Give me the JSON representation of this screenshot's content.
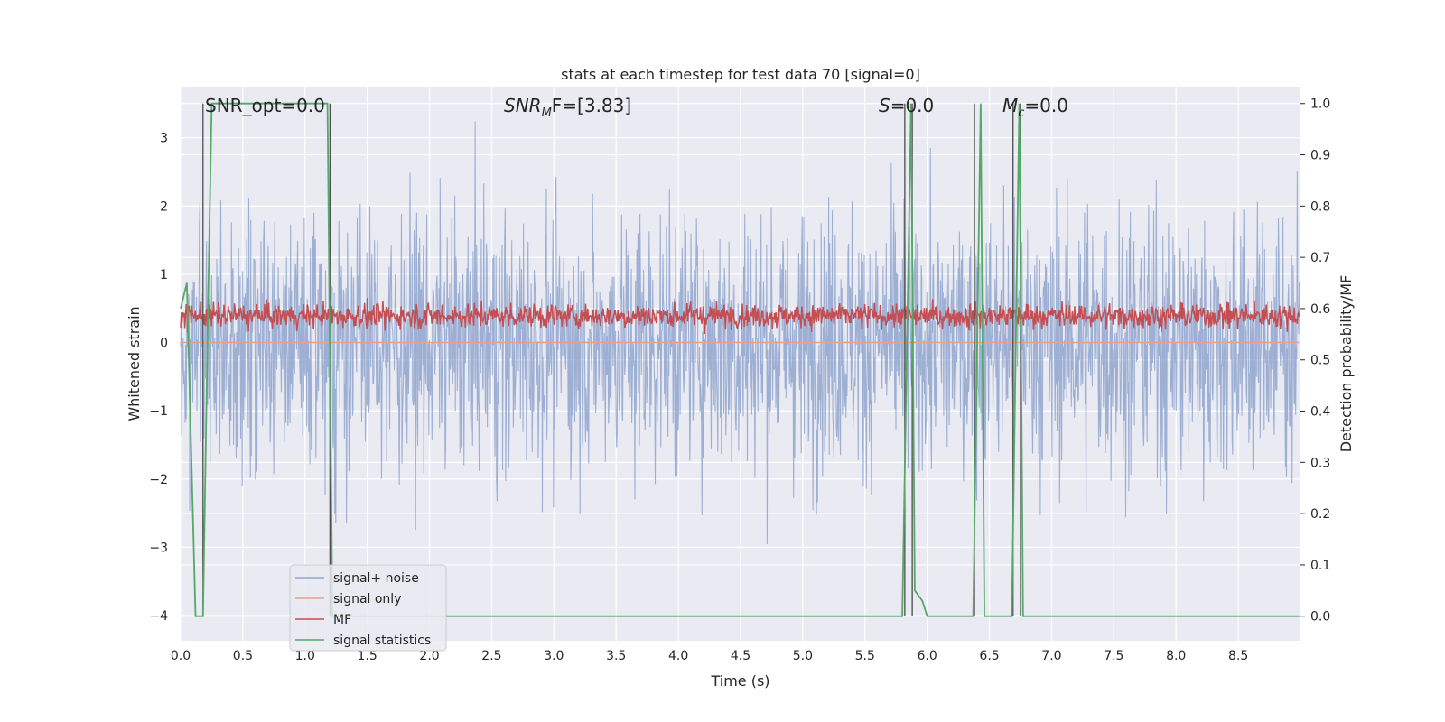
{
  "chart_data": {
    "type": "line",
    "title": "stats at each timestep for test data 70 [signal=0]",
    "xlabel": "Time (s)",
    "ylabel_left": "Whitened strain",
    "ylabel_right": "Detection probability/MF",
    "xlim": [
      0.0,
      9.0
    ],
    "ylim_left": [
      -4.37,
      3.75
    ],
    "ylim_right": [
      -0.048,
      1.033
    ],
    "x_ticks": [
      "0.0",
      "0.5",
      "1.0",
      "1.5",
      "2.0",
      "2.5",
      "3.0",
      "3.5",
      "4.0",
      "4.5",
      "5.0",
      "5.5",
      "6.0",
      "6.5",
      "7.0",
      "7.5",
      "8.0",
      "8.5"
    ],
    "y_left_ticks": [
      "3",
      "2",
      "1",
      "0",
      "−1",
      "−2",
      "−3",
      "−4"
    ],
    "y_right_ticks": [
      "1.0",
      "0.9",
      "0.8",
      "0.7",
      "0.6",
      "0.5",
      "0.4",
      "0.3",
      "0.2",
      "0.1",
      "0.0"
    ],
    "grid": true,
    "legend_position": "lower-left",
    "annotations": {
      "snr_opt": "SNR_opt=0.0",
      "snr_mf_prefix": "SNR",
      "snr_mf_sub": "M",
      "snr_mf_suffix": "F=[3.83]",
      "s_prefix": "S",
      "s_suffix": "=0.0",
      "mc_prefix": "M",
      "mc_sub": "c",
      "mc_suffix": "=0.0"
    },
    "series": [
      {
        "name": "signal+ noise",
        "color": "#8fa6cf",
        "axis": "left",
        "style": "noise ~ N(0,1), clipped [-3.8, 3.5]"
      },
      {
        "name": "signal only",
        "color": "#e8a08a",
        "axis": "left",
        "values_constant": 0.0
      },
      {
        "name": "MF",
        "color": "#c44e52",
        "axis": "right",
        "range": [
          0.55,
          0.63
        ]
      },
      {
        "name": "signal statistics",
        "color": "#55a868",
        "axis": "right",
        "x": [
          0.0,
          0.05,
          0.12,
          0.18,
          0.22,
          0.25,
          1.18,
          1.22,
          1.5,
          5.8,
          5.87,
          5.9,
          5.96,
          6.0,
          6.3,
          6.37,
          6.43,
          6.46,
          6.5,
          6.65,
          6.68,
          6.74,
          6.77,
          6.8,
          8.99
        ],
        "y": [
          0.6,
          0.65,
          0.0,
          0.0,
          0.6,
          1.0,
          1.0,
          0.0,
          0.0,
          0.0,
          1.0,
          0.05,
          0.03,
          0.0,
          0.0,
          0.0,
          1.0,
          0.0,
          0.0,
          0.0,
          0.0,
          1.0,
          0.0,
          0.0,
          0.0
        ]
      }
    ],
    "vertical_markers_x": [
      0.18,
      1.2,
      5.82,
      5.88,
      6.38,
      6.69,
      6.75
    ]
  }
}
